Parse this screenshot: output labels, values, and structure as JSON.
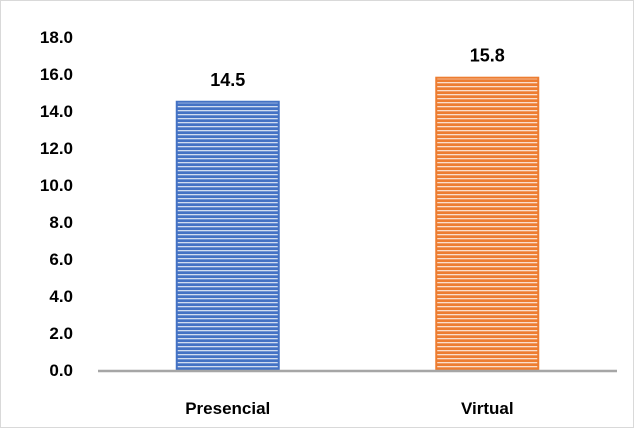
{
  "chart_data": {
    "type": "bar",
    "categories": [
      "Presencial",
      "Virtual"
    ],
    "values": [
      14.5,
      15.8
    ],
    "value_labels": [
      "14.5",
      "15.8"
    ],
    "ylim": [
      0,
      18
    ],
    "yticks": [
      "0.0",
      "2.0",
      "4.0",
      "6.0",
      "8.0",
      "10.0",
      "12.0",
      "14.0",
      "16.0",
      "18.0"
    ],
    "ytick_values": [
      0,
      2,
      4,
      6,
      8,
      10,
      12,
      14,
      16,
      18
    ],
    "title": "",
    "xlabel": "",
    "ylabel": "",
    "grid": false,
    "bar_colors": [
      {
        "fill": "#4472c4",
        "stripe": "#ffffff",
        "edge": "#4472c4"
      },
      {
        "fill": "#ed7d31",
        "stripe": "#ffffff",
        "edge": "#ed7d31"
      }
    ],
    "axis_color": "#a6a6a6"
  }
}
